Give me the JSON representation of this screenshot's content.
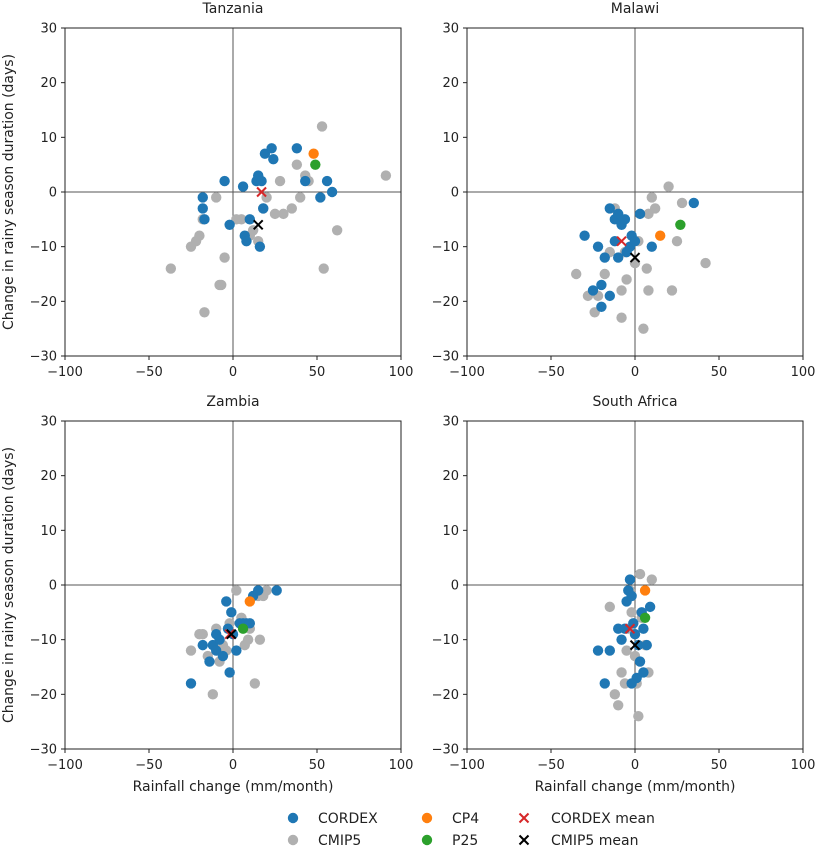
{
  "chart_data": [
    {
      "type": "scatter",
      "title": "Tanzania",
      "xlabel": "",
      "ylabel": "Change in rainy season duration (days)",
      "xlim": [
        -100,
        100
      ],
      "ylim": [
        -30,
        30
      ],
      "xticks": [
        -100,
        -50,
        0,
        50,
        100
      ],
      "yticks": [
        -30,
        -20,
        -10,
        0,
        10,
        20,
        30
      ],
      "series": [
        {
          "name": "CMIP5",
          "marker": "circle",
          "color": "#b0b0b0",
          "points": [
            [
              -37,
              -14
            ],
            [
              -25,
              -10
            ],
            [
              -22,
              -9
            ],
            [
              -20,
              -8
            ],
            [
              -18,
              -5
            ],
            [
              -17,
              -22
            ],
            [
              -8,
              -17
            ],
            [
              -7,
              -17
            ],
            [
              -10,
              -1
            ],
            [
              -5,
              -12
            ],
            [
              2,
              -5
            ],
            [
              5,
              -5
            ],
            [
              10,
              -8
            ],
            [
              12,
              -7
            ],
            [
              15,
              -9
            ],
            [
              18,
              -3
            ],
            [
              20,
              -1
            ],
            [
              25,
              -4
            ],
            [
              30,
              -4
            ],
            [
              35,
              -3
            ],
            [
              38,
              5
            ],
            [
              40,
              -1
            ],
            [
              43,
              3
            ],
            [
              45,
              2
            ],
            [
              53,
              12
            ],
            [
              54,
              -14
            ],
            [
              62,
              -7
            ],
            [
              91,
              3
            ],
            [
              28,
              2
            ]
          ]
        },
        {
          "name": "CORDEX",
          "marker": "circle",
          "color": "#1f77b4",
          "points": [
            [
              -18,
              -1
            ],
            [
              -18,
              -3
            ],
            [
              -17,
              -5
            ],
            [
              -5,
              2
            ],
            [
              -2,
              -6
            ],
            [
              6,
              1
            ],
            [
              7,
              -8
            ],
            [
              8,
              -9
            ],
            [
              10,
              -5
            ],
            [
              14,
              2
            ],
            [
              15,
              3
            ],
            [
              16,
              -10
            ],
            [
              17,
              2
            ],
            [
              18,
              -3
            ],
            [
              19,
              7
            ],
            [
              23,
              8
            ],
            [
              24,
              6
            ],
            [
              38,
              8
            ],
            [
              43,
              2
            ],
            [
              52,
              -1
            ],
            [
              56,
              2
            ],
            [
              59,
              0
            ]
          ]
        },
        {
          "name": "CP4",
          "marker": "circle",
          "color": "#ff7f0e",
          "points": [
            [
              48,
              7
            ]
          ]
        },
        {
          "name": "P25",
          "marker": "circle",
          "color": "#2ca02c",
          "points": [
            [
              49,
              5
            ]
          ]
        },
        {
          "name": "CORDEX mean",
          "marker": "x",
          "color": "#d62728",
          "points": [
            [
              17,
              0
            ]
          ]
        },
        {
          "name": "CMIP5 mean",
          "marker": "x",
          "color": "#000000",
          "points": [
            [
              15,
              -6
            ]
          ]
        }
      ]
    },
    {
      "type": "scatter",
      "title": "Malawi",
      "xlabel": "",
      "ylabel": "",
      "xlim": [
        -100,
        100
      ],
      "ylim": [
        -30,
        30
      ],
      "xticks": [
        -100,
        -50,
        0,
        50,
        100
      ],
      "yticks": [
        -30,
        -20,
        -10,
        0,
        10,
        20,
        30
      ],
      "series": [
        {
          "name": "CMIP5",
          "marker": "circle",
          "color": "#b0b0b0",
          "points": [
            [
              -35,
              -15
            ],
            [
              -28,
              -19
            ],
            [
              -24,
              -22
            ],
            [
              -22,
              -19
            ],
            [
              -18,
              -15
            ],
            [
              -15,
              -11
            ],
            [
              -12,
              -3
            ],
            [
              -10,
              -5
            ],
            [
              -8,
              -18
            ],
            [
              -8,
              -23
            ],
            [
              -6,
              -11
            ],
            [
              -5,
              -16
            ],
            [
              0,
              -13
            ],
            [
              2,
              -9
            ],
            [
              5,
              -25
            ],
            [
              7,
              -14
            ],
            [
              8,
              -4
            ],
            [
              8,
              -18
            ],
            [
              10,
              -1
            ],
            [
              12,
              -3
            ],
            [
              20,
              1
            ],
            [
              22,
              -18
            ],
            [
              25,
              -9
            ],
            [
              28,
              -2
            ],
            [
              42,
              -13
            ]
          ]
        },
        {
          "name": "CORDEX",
          "marker": "circle",
          "color": "#1f77b4",
          "points": [
            [
              -30,
              -8
            ],
            [
              -25,
              -18
            ],
            [
              -22,
              -10
            ],
            [
              -20,
              -17
            ],
            [
              -20,
              -21
            ],
            [
              -18,
              -12
            ],
            [
              -15,
              -19
            ],
            [
              -15,
              -3
            ],
            [
              -12,
              -5
            ],
            [
              -12,
              -9
            ],
            [
              -10,
              -12
            ],
            [
              -10,
              -4
            ],
            [
              -8,
              -6
            ],
            [
              -6,
              -5
            ],
            [
              -5,
              -11
            ],
            [
              -3,
              -10
            ],
            [
              -2,
              -8
            ],
            [
              0,
              -9
            ],
            [
              3,
              -4
            ],
            [
              10,
              -10
            ],
            [
              35,
              -2
            ]
          ]
        },
        {
          "name": "CP4",
          "marker": "circle",
          "color": "#ff7f0e",
          "points": [
            [
              15,
              -8
            ]
          ]
        },
        {
          "name": "P25",
          "marker": "circle",
          "color": "#2ca02c",
          "points": [
            [
              27,
              -6
            ]
          ]
        },
        {
          "name": "CORDEX mean",
          "marker": "x",
          "color": "#d62728",
          "points": [
            [
              -8,
              -9
            ]
          ]
        },
        {
          "name": "CMIP5 mean",
          "marker": "x",
          "color": "#000000",
          "points": [
            [
              0,
              -12
            ]
          ]
        }
      ]
    },
    {
      "type": "scatter",
      "title": "Zambia",
      "xlabel": "Rainfall change (mm/month)",
      "ylabel": "Change in rainy season duration (days)",
      "xlim": [
        -100,
        100
      ],
      "ylim": [
        -30,
        30
      ],
      "xticks": [
        -100,
        -50,
        0,
        50,
        100
      ],
      "yticks": [
        -30,
        -20,
        -10,
        0,
        10,
        20,
        30
      ],
      "series": [
        {
          "name": "CMIP5",
          "marker": "circle",
          "color": "#b0b0b0",
          "points": [
            [
              -25,
              -12
            ],
            [
              -20,
              -9
            ],
            [
              -18,
              -9
            ],
            [
              -15,
              -13
            ],
            [
              -12,
              -20
            ],
            [
              -10,
              -8
            ],
            [
              -8,
              -14
            ],
            [
              -6,
              -11
            ],
            [
              -4,
              -12
            ],
            [
              -2,
              -7
            ],
            [
              2,
              -1
            ],
            [
              5,
              -6
            ],
            [
              7,
              -11
            ],
            [
              9,
              -10
            ],
            [
              10,
              -8
            ],
            [
              13,
              -18
            ],
            [
              15,
              -2
            ],
            [
              16,
              -10
            ],
            [
              18,
              -2
            ],
            [
              20,
              -1
            ]
          ]
        },
        {
          "name": "CORDEX",
          "marker": "circle",
          "color": "#1f77b4",
          "points": [
            [
              -25,
              -18
            ],
            [
              -18,
              -11
            ],
            [
              -14,
              -14
            ],
            [
              -12,
              -11
            ],
            [
              -10,
              -9
            ],
            [
              -10,
              -12
            ],
            [
              -8,
              -10
            ],
            [
              -6,
              -13
            ],
            [
              -4,
              -3
            ],
            [
              -3,
              -8
            ],
            [
              -2,
              -16
            ],
            [
              -1,
              -5
            ],
            [
              0,
              -9
            ],
            [
              2,
              -12
            ],
            [
              4,
              -7
            ],
            [
              6,
              -7
            ],
            [
              8,
              -7
            ],
            [
              10,
              -7
            ],
            [
              12,
              -2
            ],
            [
              15,
              -1
            ],
            [
              26,
              -1
            ]
          ]
        },
        {
          "name": "CP4",
          "marker": "circle",
          "color": "#ff7f0e",
          "points": [
            [
              10,
              -3
            ]
          ]
        },
        {
          "name": "P25",
          "marker": "circle",
          "color": "#2ca02c",
          "points": [
            [
              6,
              -8
            ]
          ]
        },
        {
          "name": "CORDEX mean",
          "marker": "x",
          "color": "#d62728",
          "points": [
            [
              -2,
              -9
            ]
          ]
        },
        {
          "name": "CMIP5 mean",
          "marker": "x",
          "color": "#000000",
          "points": [
            [
              -1,
              -9
            ]
          ]
        }
      ]
    },
    {
      "type": "scatter",
      "title": "South Africa",
      "xlabel": "Rainfall change (mm/month)",
      "ylabel": "",
      "xlim": [
        -100,
        100
      ],
      "ylim": [
        -30,
        30
      ],
      "xticks": [
        -100,
        -50,
        0,
        50,
        100
      ],
      "yticks": [
        -30,
        -20,
        -10,
        0,
        10,
        20,
        30
      ],
      "series": [
        {
          "name": "CMIP5",
          "marker": "circle",
          "color": "#b0b0b0",
          "points": [
            [
              -15,
              -4
            ],
            [
              -12,
              -20
            ],
            [
              -10,
              -22
            ],
            [
              -8,
              -16
            ],
            [
              -6,
              -18
            ],
            [
              -4,
              -8
            ],
            [
              -3,
              -1
            ],
            [
              -2,
              -5
            ],
            [
              0,
              -13
            ],
            [
              1,
              -18
            ],
            [
              2,
              -24
            ],
            [
              3,
              2
            ],
            [
              4,
              -6
            ],
            [
              6,
              -11
            ],
            [
              8,
              -16
            ],
            [
              10,
              1
            ],
            [
              -5,
              -12
            ]
          ]
        },
        {
          "name": "CORDEX",
          "marker": "circle",
          "color": "#1f77b4",
          "points": [
            [
              -22,
              -12
            ],
            [
              -18,
              -18
            ],
            [
              -15,
              -12
            ],
            [
              -10,
              -8
            ],
            [
              -8,
              -10
            ],
            [
              -6,
              -8
            ],
            [
              -5,
              -3
            ],
            [
              -4,
              -1
            ],
            [
              -3,
              1
            ],
            [
              -2,
              -2
            ],
            [
              -1,
              -7
            ],
            [
              0,
              -9
            ],
            [
              1,
              -17
            ],
            [
              2,
              -11
            ],
            [
              3,
              -14
            ],
            [
              4,
              -5
            ],
            [
              5,
              -8
            ],
            [
              7,
              -11
            ],
            [
              9,
              -4
            ],
            [
              5,
              -16
            ],
            [
              -2,
              -18
            ]
          ]
        },
        {
          "name": "CP4",
          "marker": "circle",
          "color": "#ff7f0e",
          "points": [
            [
              6,
              -1
            ]
          ]
        },
        {
          "name": "P25",
          "marker": "circle",
          "color": "#2ca02c",
          "points": [
            [
              6,
              -6
            ]
          ]
        },
        {
          "name": "CORDEX mean",
          "marker": "x",
          "color": "#d62728",
          "points": [
            [
              -3,
              -8
            ]
          ]
        },
        {
          "name": "CMIP5 mean",
          "marker": "x",
          "color": "#000000",
          "points": [
            [
              0,
              -11
            ]
          ]
        }
      ]
    }
  ],
  "legend": {
    "placement": "bottom-center",
    "entries": [
      {
        "label": "CORDEX",
        "marker": "circle",
        "color": "#1f77b4"
      },
      {
        "label": "CMIP5",
        "marker": "circle",
        "color": "#b0b0b0"
      },
      {
        "label": "CP4",
        "marker": "circle",
        "color": "#ff7f0e"
      },
      {
        "label": "P25",
        "marker": "circle",
        "color": "#2ca02c"
      },
      {
        "label": "CORDEX mean",
        "marker": "x",
        "color": "#d62728"
      },
      {
        "label": "CMIP5 mean",
        "marker": "x",
        "color": "#000000"
      }
    ]
  }
}
